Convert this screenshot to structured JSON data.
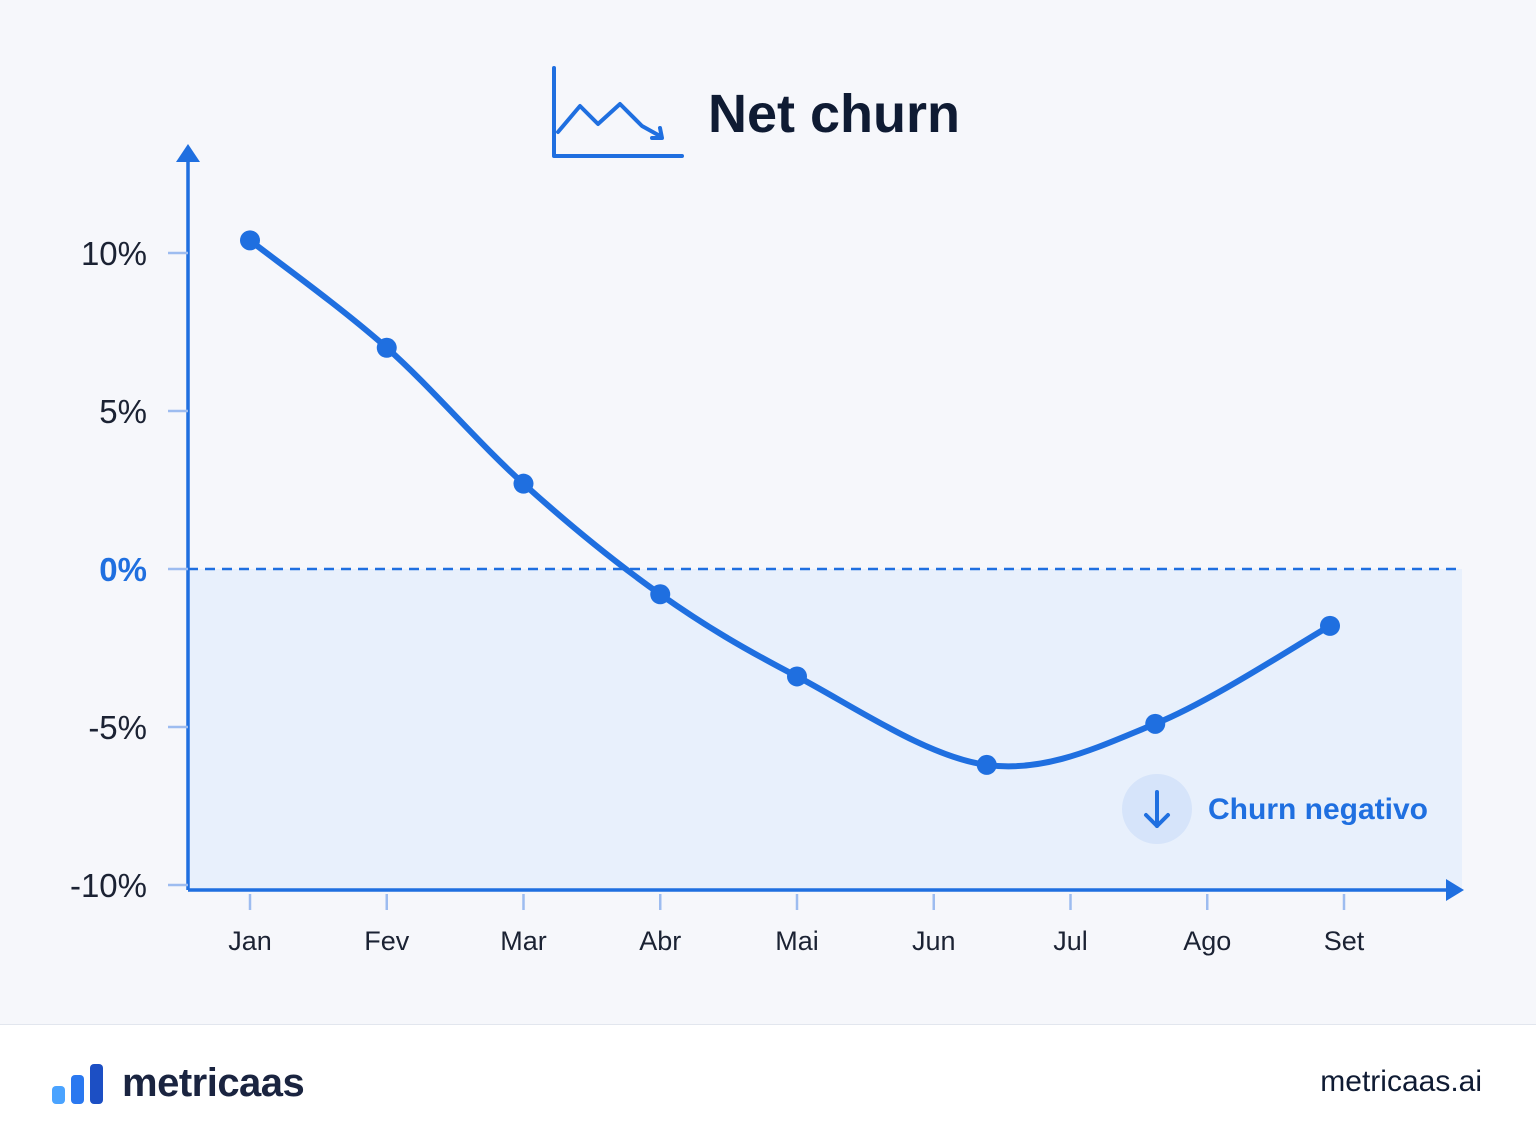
{
  "chart_data": {
    "type": "line",
    "title": "Net churn",
    "categories": [
      "Jan",
      "Fev",
      "Mar",
      "Abr",
      "Mai",
      "Jun",
      "Jul",
      "Ago",
      "Set"
    ],
    "series": [
      {
        "points": [
          {
            "x": "Jan",
            "y": 10.4
          },
          {
            "x": "Fev",
            "y": 7.0
          },
          {
            "x": "Mar",
            "y": 2.7
          },
          {
            "x": "Abr",
            "y": -0.8
          },
          {
            "x": "Mai",
            "y": -3.4
          },
          {
            "x": "Jun",
            "y": -6.2
          },
          {
            "x": "Ago",
            "y": -4.9
          },
          {
            "x": "Set",
            "y": -1.8
          }
        ]
      }
    ],
    "yticks": [
      "10%",
      "5%",
      "0%",
      "-5%",
      "-10%"
    ],
    "ytick_values": [
      10,
      5,
      0,
      -5,
      -10
    ],
    "ylim": [
      -10,
      10
    ],
    "reference_line": {
      "y": 0,
      "style": "dashed"
    },
    "shaded_region": {
      "from": -10,
      "to": 0
    },
    "annotation": {
      "text": "Churn negativo",
      "icon": "arrow-down-icon"
    },
    "grid": false,
    "colors": {
      "line": "#1f6fe0",
      "axis": "#1f6fe0",
      "shade": "#e8f0fc",
      "zero_label": "#1f6fe0"
    }
  },
  "footer": {
    "brand": "metricaas",
    "site": "metricaas.ai"
  }
}
